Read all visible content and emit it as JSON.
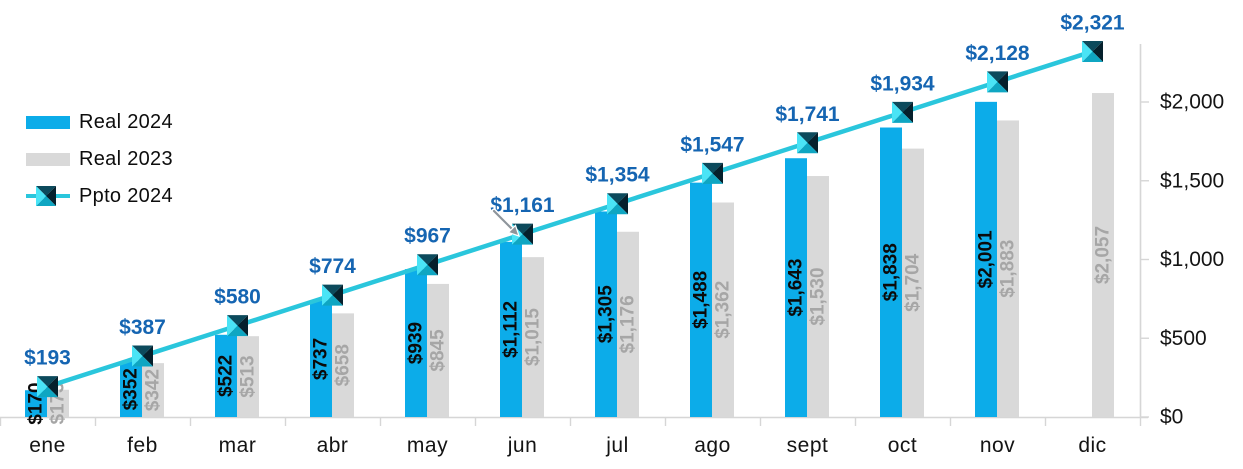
{
  "legend": {
    "items": [
      {
        "id": "real-2024",
        "label": "Real 2024",
        "swatch": "bar",
        "color": "#0CACE9"
      },
      {
        "id": "real-2023",
        "label": "Real 2023",
        "swatch": "bar",
        "color": "#D9D9D9"
      },
      {
        "id": "ppto-2024",
        "label": "Ppto 2024",
        "swatch": "line-marker",
        "color": "#2AC6DC"
      }
    ]
  },
  "chart_data": {
    "type": "combo",
    "subtype": "clustered-bars-with-line",
    "categories": [
      "ene",
      "feb",
      "mar",
      "abr",
      "may",
      "jun",
      "jul",
      "ago",
      "sept",
      "oct",
      "nov",
      "dic"
    ],
    "series": [
      {
        "name": "Real 2024",
        "type": "bar",
        "color": "#0CACE9",
        "label_color": "#0B0B0B",
        "values": [
          170,
          352,
          522,
          737,
          939,
          1112,
          1305,
          1488,
          1643,
          1838,
          2001,
          null
        ]
      },
      {
        "name": "Real 2023",
        "type": "bar",
        "color": "#D9D9D9",
        "label_color": "#A6A6A6",
        "values": [
          173,
          342,
          513,
          658,
          845,
          1015,
          1176,
          1362,
          1530,
          1704,
          1883,
          2057
        ]
      },
      {
        "name": "Ppto 2024",
        "type": "line",
        "color": "#2AC6DC",
        "label_color": "#1565B2",
        "values": [
          193,
          387,
          580,
          774,
          967,
          1161,
          1354,
          1547,
          1741,
          1934,
          2128,
          2321
        ]
      }
    ],
    "value_prefix": "$",
    "data_labels": {
      "bar_labels_rotated_90": true,
      "line_labels_above_points": true
    },
    "y_axis": {
      "side": "right",
      "ticks": [
        0,
        500,
        1000,
        1500,
        2000
      ],
      "tick_labels": [
        "$0",
        "$500",
        "$1,000",
        "$1,500",
        "$2,000"
      ],
      "range": [
        0,
        2375
      ]
    },
    "x_axis": {
      "tick_marks": "between-categories"
    },
    "grid": false,
    "legend_position": "top-left",
    "title": ""
  },
  "ui_colors": {
    "background": "#FFFFFF",
    "axis_line": "#D6D6D6",
    "axis_text": "#141414",
    "marker_facets": {
      "left": "#4AE4F6",
      "top": "#0C4A5C",
      "right": "#05202C",
      "bottom": "#0FA6C2"
    },
    "cursor": "#8E959B"
  }
}
